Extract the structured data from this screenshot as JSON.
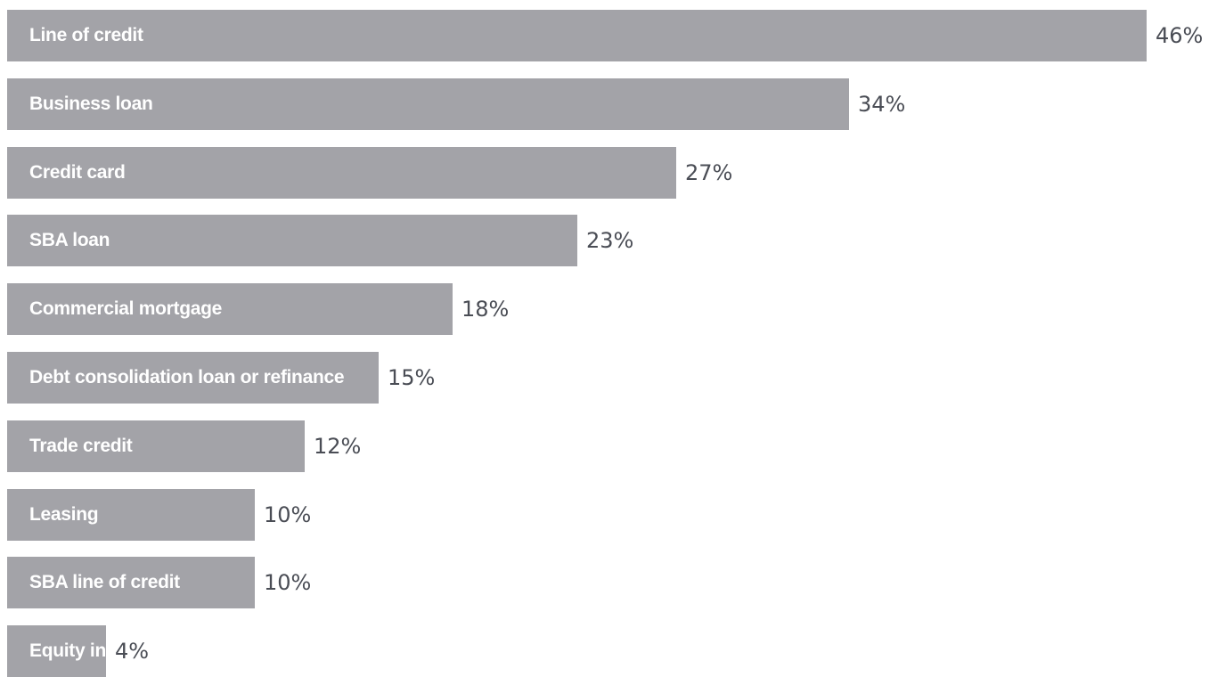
{
  "chart_data": {
    "type": "bar",
    "orientation": "horizontal",
    "categories": [
      "Line of credit",
      "Business loan",
      "Credit card",
      "SBA loan",
      "Commercial mortgage",
      "Debt consolidation loan or refinance",
      "Trade credit",
      "Leasing",
      "SBA line of credit",
      "Equity investment"
    ],
    "values": [
      46,
      34,
      27,
      23,
      18,
      15,
      12,
      10,
      10,
      4
    ],
    "value_labels": [
      "46%",
      "34%",
      "27%",
      "23%",
      "18%",
      "15%",
      "12%",
      "10%",
      "10%",
      "4%"
    ],
    "title": "",
    "xlabel": "",
    "ylabel": "",
    "xlim": [
      0,
      46
    ],
    "grid": false,
    "legend": "none",
    "colors": {
      "bar": "#a3a3a8",
      "bar_text": "#ffffff",
      "value_text": "#4a4d55"
    }
  }
}
